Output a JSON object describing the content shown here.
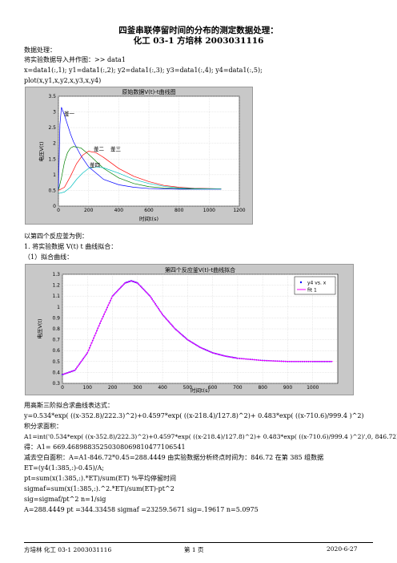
{
  "title1": "四釜串联停留时间的分布的测定数据处理：",
  "title2": "化工 03-1  方培林 2003031116",
  "lines_top": [
    "数据处理：",
    "将实验数据导入并作图：>> data1",
    "x=data1(:,1); y1=data1(:,2); y2=data1(:,3); y3=data1(:,4); y4=data1(:,5);",
    "plot(x,y1,x,y2,x,y3,x,y4)"
  ],
  "fig1": {
    "title": "原始数据V(t)-t曲线图",
    "xlabel": "时间t(s)",
    "ylabel": "电压V(t)",
    "xticks": [
      "0",
      "200",
      "400",
      "600",
      "800",
      "1000",
      "1200"
    ],
    "yticks": [
      "0",
      "0.5",
      "1",
      "1.5",
      "2",
      "2.5",
      "3",
      "3.5"
    ],
    "annotations": [
      "釜一",
      "釜二",
      "釜三",
      "釜四"
    ]
  },
  "chart_data": [
    {
      "type": "line",
      "title": "原始数据V(t)-t曲线图",
      "xlabel": "时间t(s)",
      "ylabel": "电压V(t)",
      "xlim": [
        0,
        1200
      ],
      "ylim": [
        0,
        3.5
      ],
      "grid": true,
      "series": [
        {
          "name": "釜一",
          "color": "#0000ff",
          "x": [
            0,
            10,
            20,
            40,
            60,
            80,
            100,
            150,
            200,
            300,
            400,
            500,
            600,
            700,
            800,
            900,
            1000,
            1080
          ],
          "y": [
            0.5,
            2.6,
            3.15,
            2.9,
            2.6,
            2.3,
            2.05,
            1.6,
            1.25,
            0.85,
            0.68,
            0.6,
            0.56,
            0.55,
            0.54,
            0.54,
            0.54,
            0.54
          ]
        },
        {
          "name": "釜二",
          "color": "#008000",
          "x": [
            0,
            20,
            40,
            60,
            80,
            100,
            150,
            200,
            300,
            400,
            500,
            600,
            700,
            800,
            900,
            1000,
            1080
          ],
          "y": [
            0.5,
            0.9,
            1.4,
            1.7,
            1.85,
            1.9,
            1.85,
            1.65,
            1.2,
            0.9,
            0.72,
            0.62,
            0.58,
            0.56,
            0.55,
            0.55,
            0.55
          ]
        },
        {
          "name": "釜三",
          "color": "#ff0000",
          "x": [
            0,
            40,
            80,
            120,
            160,
            200,
            250,
            300,
            400,
            500,
            600,
            700,
            800,
            900,
            1000,
            1080
          ],
          "y": [
            0.5,
            0.6,
            0.95,
            1.35,
            1.62,
            1.75,
            1.7,
            1.55,
            1.2,
            0.95,
            0.78,
            0.66,
            0.6,
            0.57,
            0.56,
            0.55
          ]
        },
        {
          "name": "釜四",
          "color": "#00bfbf",
          "x": [
            0,
            40,
            80,
            120,
            160,
            200,
            250,
            300,
            400,
            500,
            600,
            700,
            800,
            900,
            1000,
            1080
          ],
          "y": [
            0.4,
            0.45,
            0.6,
            0.85,
            1.05,
            1.2,
            1.25,
            1.22,
            1.05,
            0.85,
            0.72,
            0.63,
            0.58,
            0.56,
            0.55,
            0.55
          ]
        }
      ]
    },
    {
      "type": "line",
      "title": "第四个反应釜V(t)-t曲线拟合",
      "xlabel": "时间t(s)",
      "ylabel": "电压V(t)",
      "xlim": [
        0,
        1100
      ],
      "ylim": [
        0.3,
        1.3
      ],
      "grid": true,
      "legend": "top-right",
      "series": [
        {
          "name": "y4 vs. x",
          "color": "#0000ff",
          "x": [
            0,
            50,
            100,
            150,
            200,
            250,
            275,
            300,
            350,
            400,
            450,
            500,
            550,
            600,
            650,
            700,
            800,
            900,
            1000,
            1080
          ],
          "y": [
            0.38,
            0.42,
            0.58,
            0.85,
            1.1,
            1.22,
            1.24,
            1.22,
            1.1,
            0.93,
            0.8,
            0.7,
            0.63,
            0.58,
            0.55,
            0.53,
            0.51,
            0.5,
            0.5,
            0.5
          ]
        },
        {
          "name": "fit 1",
          "color": "#ff00ff",
          "x": [
            0,
            50,
            100,
            150,
            200,
            250,
            275,
            300,
            350,
            400,
            450,
            500,
            550,
            600,
            650,
            700,
            800,
            900,
            1000,
            1080
          ],
          "y": [
            0.38,
            0.42,
            0.58,
            0.85,
            1.1,
            1.22,
            1.24,
            1.22,
            1.1,
            0.93,
            0.8,
            0.7,
            0.63,
            0.58,
            0.55,
            0.53,
            0.51,
            0.5,
            0.5,
            0.5
          ]
        }
      ]
    }
  ],
  "lines_mid": [
    "以第四个反应釜为例：",
    "1.  将实验数据 V(t) t 曲线拟合：",
    "（1）拟合曲线："
  ],
  "fig2": {
    "title": "第四个反应釜V(t)-t曲线拟合",
    "xlabel": "时间t(s)",
    "ylabel": "电压V(t)",
    "xticks": [
      "0",
      "100",
      "200",
      "300",
      "400",
      "500",
      "600",
      "700",
      "800",
      "900",
      "1000"
    ],
    "yticks": [
      "0.3",
      "0.4",
      "0.5",
      "0.6",
      "0.7",
      "0.8",
      "0.9",
      "1",
      "1.1",
      "1.2",
      "1.3"
    ],
    "legend": [
      "y4 vs. x",
      "fit 1"
    ]
  },
  "lines_bottom": [
    "用高斯三阶拟合求曲线表达式：",
    "y=0.534*exp( ((x-352.8)/222.3)^2)+0.4597*exp( ((x-218.4)/127.8)^2)+ 0.483*exp( ((x-710.6)/999.4 )^2)",
    "积分求面积：",
    "A1=int('0.534*exp( ((x-352.8)/222.3)^2)+0.4597*exp( ((x-218.4)/127.8)^2)+ 0.483*exp( ((x-710.6)/999.4 )^2)',0, 846.72)",
    "得：A1= 669.46898835250308069810477106541",
    "减去空白面积：A=A1-846.72*0.45=288.4449  由实验数据分析终点时间为：846.72  在第 385 组数据",
    "ET=(y4(1:385,:)-0.45)/A;",
    "pt=sum(x(1:385,:).*ET)/sum(ET) %平均停留时间",
    "sigmaf=sum(x(1:385,:).^2.*ET)/sum(ET)-pt^2",
    "sig=sigmaf/pt^2    n=1/sig",
    "A=288.4449     pt =344.33458    sigmaf =23259.5671    sig=.19617    n=5.0975"
  ],
  "footer": {
    "left": "方培林  化工 03-1   2003031116",
    "center": "第  1  页",
    "right": "2020-6-27"
  }
}
